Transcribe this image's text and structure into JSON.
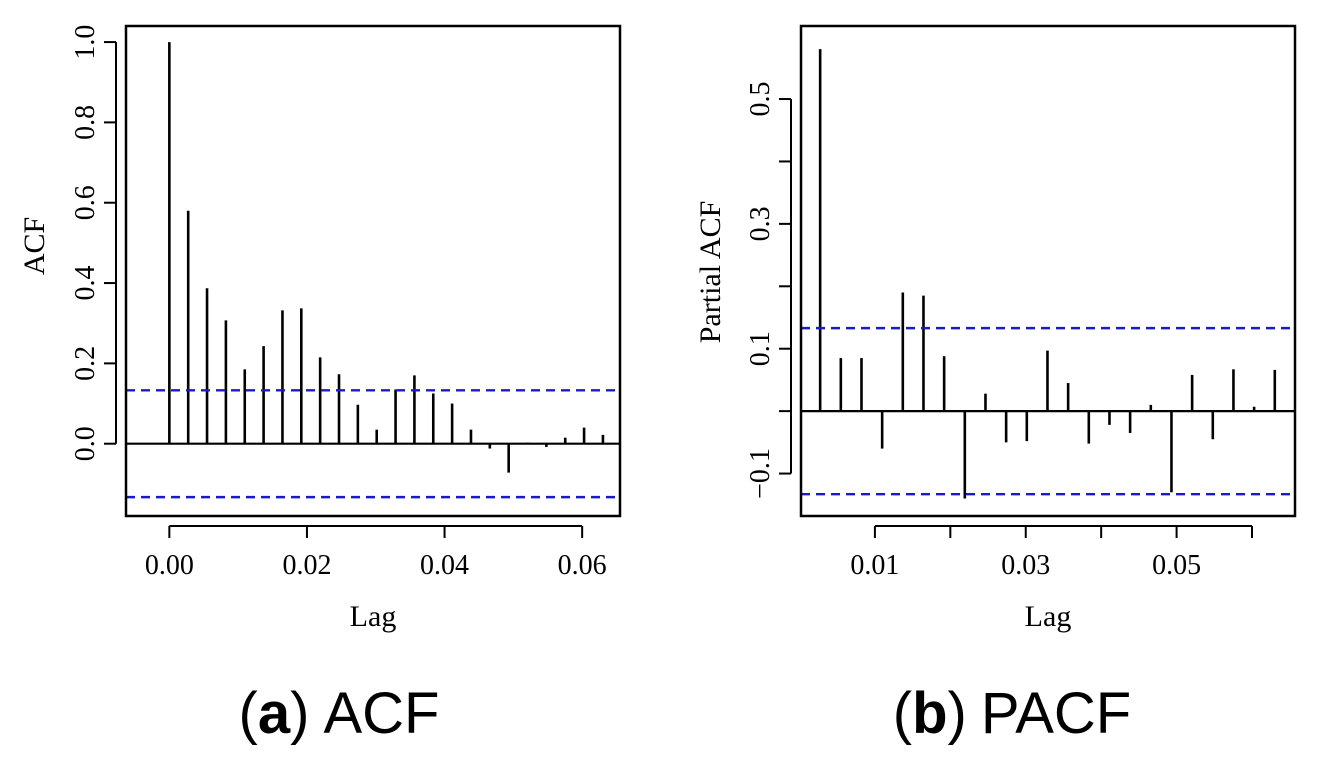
{
  "chart_data": [
    {
      "type": "bar",
      "subplot_letter": "a",
      "caption_title": "ACF",
      "xlabel": "Lag",
      "ylabel": "ACF",
      "xlim": [
        -0.0063,
        0.0655
      ],
      "ylim": [
        -0.18,
        1.04
      ],
      "xticks": [
        {
          "value": 0.0,
          "label": "0.00"
        },
        {
          "value": 0.02,
          "label": "0.02"
        },
        {
          "value": 0.04,
          "label": "0.04"
        },
        {
          "value": 0.06,
          "label": "0.06"
        }
      ],
      "yticks": [
        {
          "value": 0.0,
          "label": "0.0"
        },
        {
          "value": 0.2,
          "label": "0.2"
        },
        {
          "value": 0.4,
          "label": "0.4"
        },
        {
          "value": 0.6,
          "label": "0.6"
        },
        {
          "value": 0.8,
          "label": "0.8"
        },
        {
          "value": 1.0,
          "label": "1.0"
        }
      ],
      "confidence_bound": 0.133,
      "confidence_color": "#1a1acc",
      "lags": [
        0.0,
        0.00274,
        0.00548,
        0.00822,
        0.01096,
        0.0137,
        0.01644,
        0.01918,
        0.02192,
        0.02466,
        0.0274,
        0.03014,
        0.03288,
        0.03562,
        0.03836,
        0.0411,
        0.04384,
        0.04658,
        0.04932,
        0.05206,
        0.0548,
        0.05754,
        0.06028,
        0.06302
      ],
      "values": [
        1.0,
        0.58,
        0.387,
        0.307,
        0.185,
        0.243,
        0.332,
        0.337,
        0.215,
        0.173,
        0.097,
        0.035,
        0.135,
        0.17,
        0.125,
        0.1,
        0.035,
        -0.012,
        -0.072,
        0.003,
        -0.008,
        0.015,
        0.04,
        0.022
      ]
    },
    {
      "type": "bar",
      "subplot_letter": "b",
      "caption_title": "PACF",
      "xlabel": "Lag",
      "ylabel": "Partial ACF",
      "xlim": [
        0.0002,
        0.0657
      ],
      "ylim": [
        -0.168,
        0.617
      ],
      "xticks": [
        {
          "value": 0.01,
          "label": "0.01"
        },
        {
          "value": 0.02,
          "label": ""
        },
        {
          "value": 0.03,
          "label": "0.03"
        },
        {
          "value": 0.04,
          "label": ""
        },
        {
          "value": 0.05,
          "label": "0.05"
        },
        {
          "value": 0.06,
          "label": ""
        }
      ],
      "yticks": [
        {
          "value": -0.1,
          "label": "−0.1"
        },
        {
          "value": 0.0,
          "label": ""
        },
        {
          "value": 0.1,
          "label": "0.1"
        },
        {
          "value": 0.2,
          "label": ""
        },
        {
          "value": 0.3,
          "label": "0.3"
        },
        {
          "value": 0.4,
          "label": ""
        },
        {
          "value": 0.5,
          "label": "0.5"
        }
      ],
      "confidence_bound": 0.133,
      "confidence_color": "#1a1acc",
      "lags": [
        0.00274,
        0.00548,
        0.00822,
        0.01096,
        0.0137,
        0.01644,
        0.01918,
        0.02192,
        0.02466,
        0.0274,
        0.03014,
        0.03288,
        0.03562,
        0.03836,
        0.0411,
        0.04384,
        0.04658,
        0.04932,
        0.05206,
        0.0548,
        0.05754,
        0.06028,
        0.06302
      ],
      "values": [
        0.58,
        0.085,
        0.085,
        -0.06,
        0.19,
        0.185,
        0.088,
        -0.14,
        0.028,
        -0.05,
        -0.048,
        0.097,
        0.045,
        -0.052,
        -0.022,
        -0.035,
        0.01,
        -0.13,
        0.058,
        -0.045,
        0.067,
        0.007,
        0.066
      ]
    }
  ]
}
